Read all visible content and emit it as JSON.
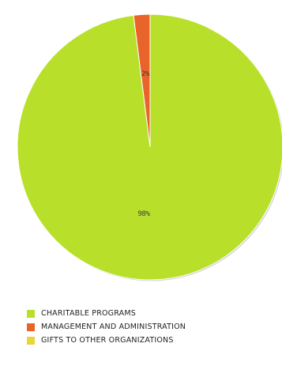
{
  "chart_data": {
    "type": "pie",
    "slices": [
      {
        "label": "CHARITABLE PROGRAMS",
        "value": 98,
        "display": "98%",
        "color": "#b8e02b"
      },
      {
        "label": "MANAGEMENT AND ADMINISTRATION",
        "value": 2,
        "display": "2%",
        "color": "#e8642a"
      },
      {
        "label": "GIFTS TO OTHER ORGANIZATIONS",
        "value": 0,
        "display": "",
        "color": "#e9d73a"
      }
    ],
    "legend": {
      "position": "bottom-left",
      "items": [
        {
          "label": "CHARITABLE PROGRAMS",
          "color": "#b8e02b"
        },
        {
          "label": "MANAGEMENT AND ADMINISTRATION",
          "color": "#e8642a"
        },
        {
          "label": "GIFTS TO OTHER ORGANIZATIONS",
          "color": "#e9d73a"
        }
      ]
    }
  }
}
